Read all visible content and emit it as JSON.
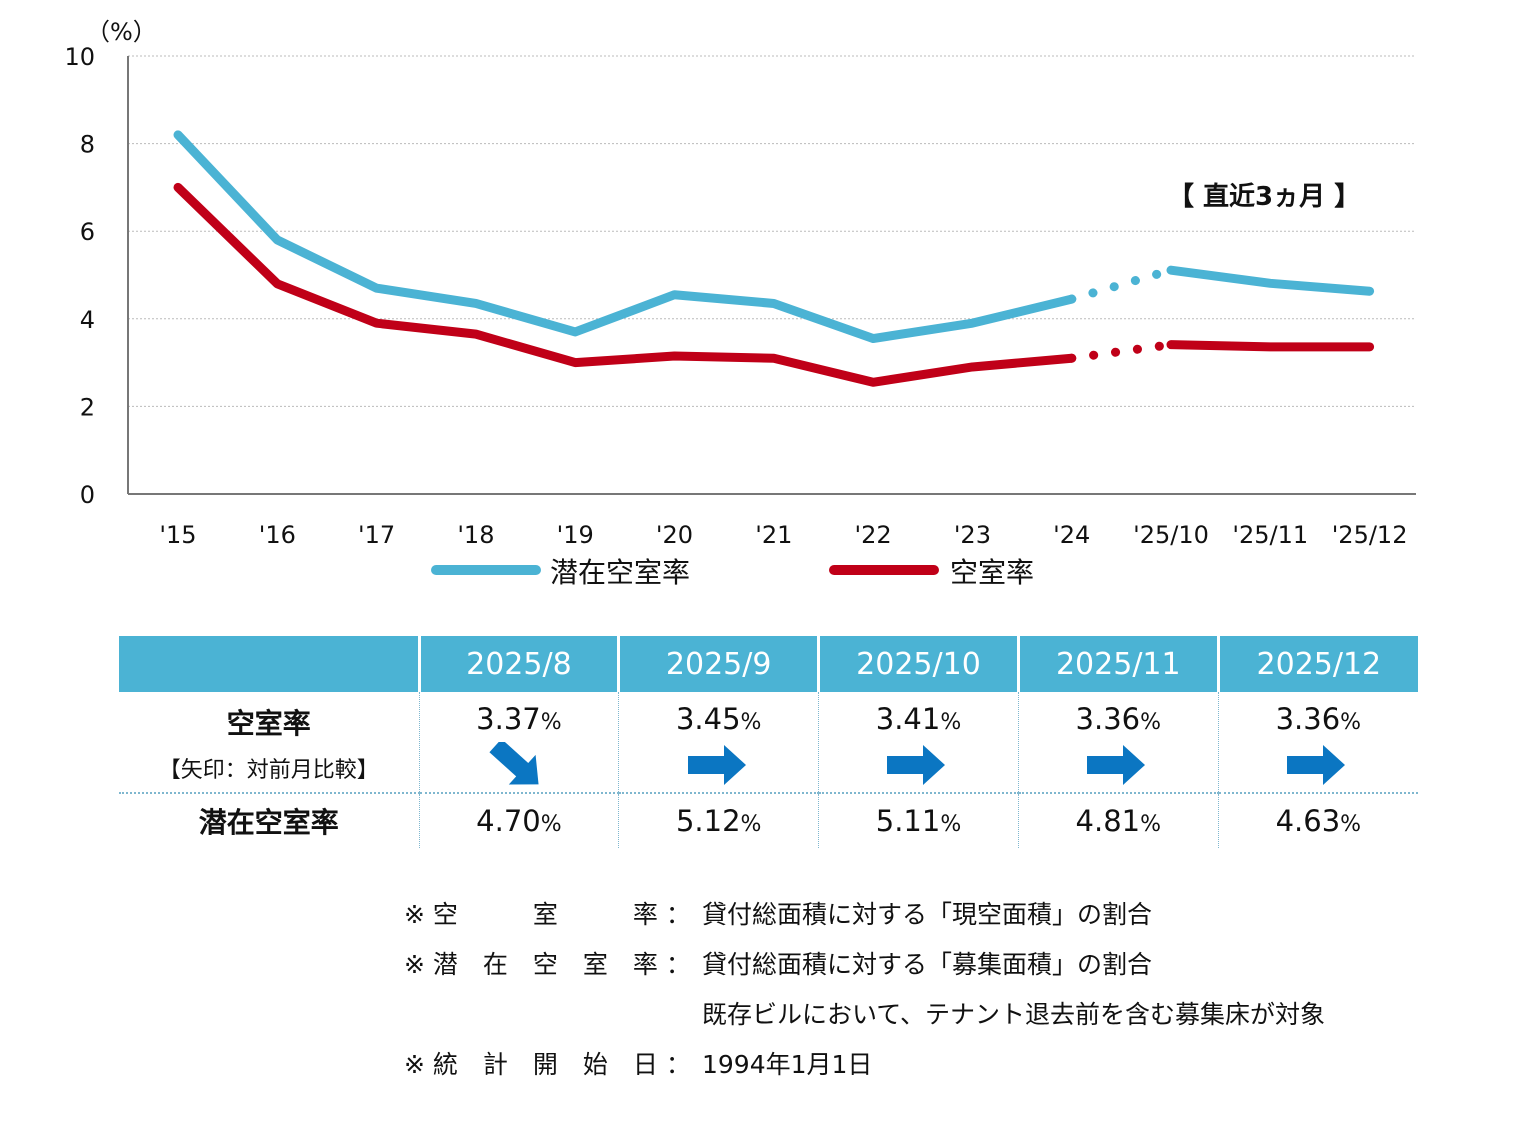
{
  "chart_data": {
    "type": "line",
    "unit_label": "（%）",
    "y_ticks": [
      "0",
      "2",
      "4",
      "6",
      "8",
      "10"
    ],
    "ylim": [
      0,
      10
    ],
    "categories": [
      "'15",
      "'16",
      "'17",
      "'18",
      "'19",
      "'20",
      "'21",
      "'22",
      "'23",
      "'24",
      "'25/10",
      "'25/11",
      "'25/12"
    ],
    "series": [
      {
        "name": "潜在空室率",
        "color": "#4bb3d4",
        "values": [
          8.2,
          5.8,
          4.7,
          4.35,
          3.7,
          4.55,
          4.35,
          3.55,
          3.9,
          4.45,
          5.11,
          4.81,
          4.63
        ]
      },
      {
        "name": "空室率",
        "color": "#c00018",
        "values": [
          7.0,
          4.8,
          3.9,
          3.65,
          3.0,
          3.15,
          3.1,
          2.55,
          2.9,
          3.1,
          3.41,
          3.36,
          3.36
        ]
      }
    ],
    "dotted_segment": {
      "from_index": 9,
      "to_index": 10
    },
    "annotation": "【 直近3ヵ月 】"
  },
  "table": {
    "headers": [
      "",
      "2025/8",
      "2025/9",
      "2025/10",
      "2025/11",
      "2025/12"
    ],
    "vacancy_label": "空室率",
    "arrow_label": "【矢印：対前月比較】",
    "potential_label": "潜在空室率",
    "percent_sign": "%",
    "vacancy_values": [
      "3.37",
      "3.45",
      "3.41",
      "3.36",
      "3.36"
    ],
    "arrows": [
      "down",
      "flat",
      "flat",
      "flat",
      "flat"
    ],
    "potential_values": [
      "4.70",
      "5.12",
      "5.11",
      "4.81",
      "4.63"
    ],
    "arrow_color": "#0b76c2"
  },
  "notes": [
    {
      "key": "※ 空　　　室　　　率 ：",
      "value": "貸付総面積に対する「現空面積」の割合"
    },
    {
      "key": "※ 潜　在　空　室　率 ：",
      "value": "貸付総面積に対する「募集面積」の割合"
    },
    {
      "key": "",
      "value": "既存ビルにおいて、テナント退去前を含む募集床が対象"
    },
    {
      "key": "※ 統　計　開　始　日 ：",
      "value": "1994年1月1日"
    }
  ]
}
